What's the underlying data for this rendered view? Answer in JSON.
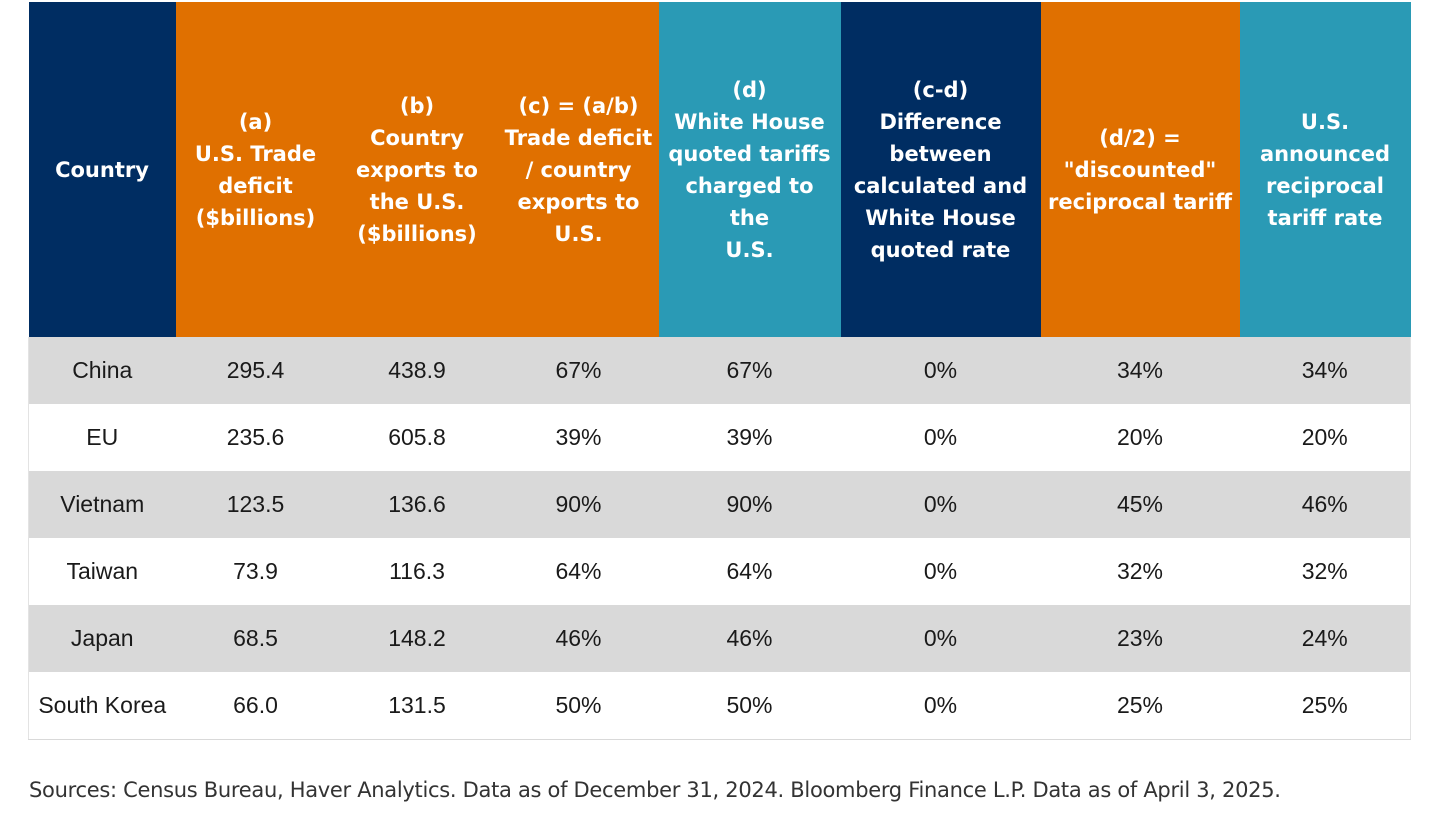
{
  "chart_data": {
    "type": "table",
    "columns": [
      {
        "label": "Country",
        "color": "#002d62"
      },
      {
        "label": "(a)\nU.S. Trade\ndeficit\n($billions)",
        "color": "#e07000"
      },
      {
        "label": "(b)\nCountry\nexports to\nthe U.S.\n($billions)",
        "color": "#e07000"
      },
      {
        "label": "(c) = (a/b)\nTrade deficit\n/ country\nexports to\nU.S.",
        "color": "#e07000"
      },
      {
        "label": "(d)\nWhite House\nquoted tariffs\ncharged to the\nU.S.",
        "color": "#2a9ab5"
      },
      {
        "label": "(c-d)\nDifference\nbetween\ncalculated and\nWhite House\nquoted rate",
        "color": "#002d62"
      },
      {
        "label": "(d/2) =\n\"discounted\"\nreciprocal tariff",
        "color": "#e07000"
      },
      {
        "label": "U.S.\nannounced\nreciprocal\ntariff rate",
        "color": "#2a9ab5"
      }
    ],
    "rows": [
      [
        "China",
        "295.4",
        "438.9",
        "67%",
        "67%",
        "0%",
        "34%",
        "34%"
      ],
      [
        "EU",
        "235.6",
        "605.8",
        "39%",
        "39%",
        "0%",
        "20%",
        "20%"
      ],
      [
        "Vietnam",
        "123.5",
        "136.6",
        "90%",
        "90%",
        "0%",
        "45%",
        "46%"
      ],
      [
        "Taiwan",
        "73.9",
        "116.3",
        "64%",
        "64%",
        "0%",
        "32%",
        "32%"
      ],
      [
        "Japan",
        "68.5",
        "148.2",
        "46%",
        "46%",
        "0%",
        "23%",
        "24%"
      ],
      [
        "South Korea",
        "66.0",
        "131.5",
        "50%",
        "50%",
        "0%",
        "25%",
        "25%"
      ]
    ],
    "source": "Sources: Census Bureau, Haver Analytics. Data as of December 31, 2024. Bloomberg Finance L.P. Data as of April 3, 2025."
  }
}
